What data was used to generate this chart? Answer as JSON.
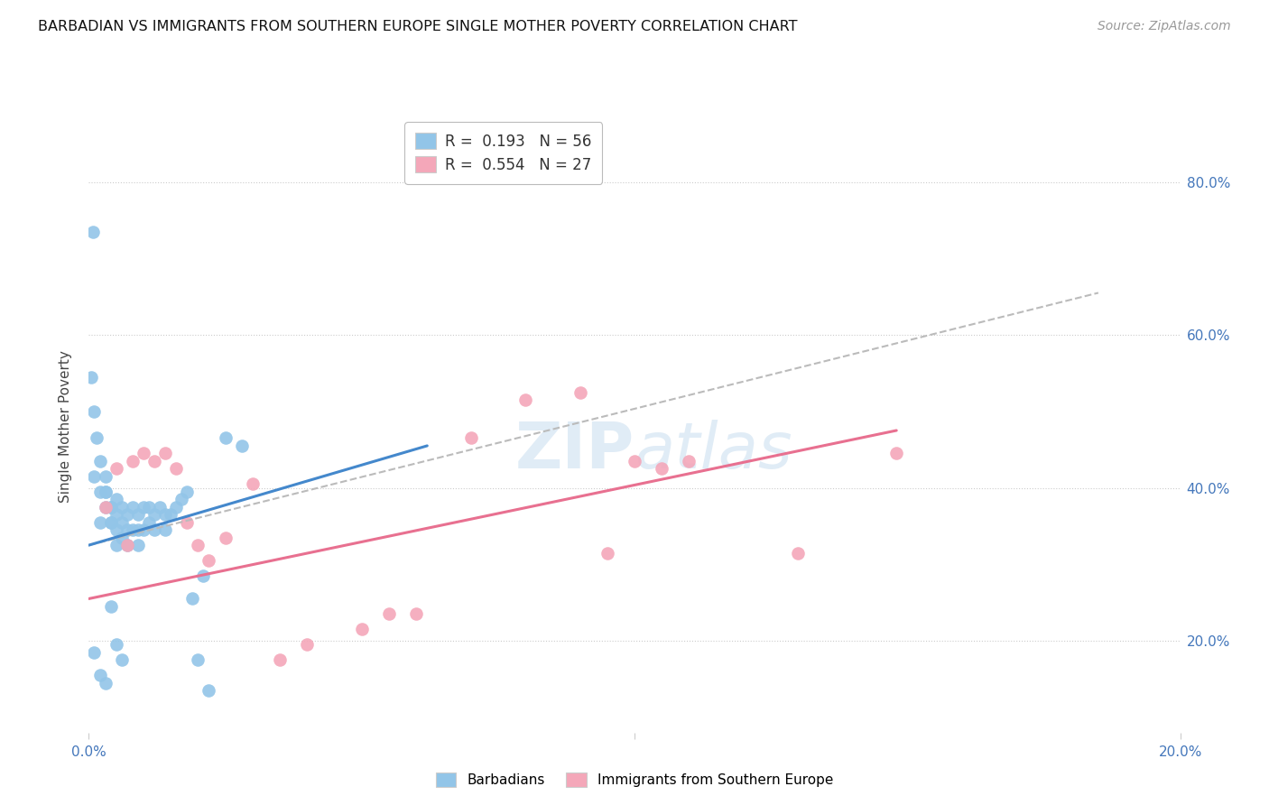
{
  "title": "BARBADIAN VS IMMIGRANTS FROM SOUTHERN EUROPE SINGLE MOTHER POVERTY CORRELATION CHART",
  "source": "Source: ZipAtlas.com",
  "ylabel": "Single Mother Poverty",
  "y_tick_labels": [
    "20.0%",
    "40.0%",
    "60.0%",
    "80.0%"
  ],
  "y_tick_values": [
    0.2,
    0.4,
    0.6,
    0.8
  ],
  "x_range": [
    0.0,
    0.2
  ],
  "y_range": [
    0.08,
    0.88
  ],
  "legend_r1": "R =  0.193",
  "legend_n1": "N = 56",
  "legend_r2": "R =  0.554",
  "legend_n2": "N = 27",
  "blue_color": "#92C5E8",
  "pink_color": "#F4A7B9",
  "blue_line_color": "#4488CC",
  "pink_line_color": "#E87090",
  "dashed_line_color": "#BBBBBB",
  "watermark_color": "#C8DDEF",
  "background_color": "#FFFFFF",
  "blue_scatter_x": [
    0.0008,
    0.0005,
    0.001,
    0.0015,
    0.002,
    0.001,
    0.002,
    0.003,
    0.002,
    0.003,
    0.003,
    0.004,
    0.004,
    0.003,
    0.004,
    0.004,
    0.005,
    0.005,
    0.005,
    0.005,
    0.006,
    0.006,
    0.006,
    0.007,
    0.007,
    0.007,
    0.008,
    0.008,
    0.009,
    0.009,
    0.009,
    0.01,
    0.01,
    0.011,
    0.011,
    0.012,
    0.012,
    0.013,
    0.014,
    0.014,
    0.015,
    0.016,
    0.017,
    0.018,
    0.019,
    0.02,
    0.021,
    0.022,
    0.025,
    0.028,
    0.001,
    0.002,
    0.003,
    0.004,
    0.005,
    0.006
  ],
  "blue_scatter_y": [
    0.735,
    0.545,
    0.5,
    0.465,
    0.435,
    0.415,
    0.395,
    0.375,
    0.355,
    0.415,
    0.395,
    0.375,
    0.355,
    0.395,
    0.375,
    0.355,
    0.385,
    0.365,
    0.345,
    0.325,
    0.375,
    0.355,
    0.335,
    0.365,
    0.345,
    0.325,
    0.375,
    0.345,
    0.365,
    0.345,
    0.325,
    0.375,
    0.345,
    0.375,
    0.355,
    0.365,
    0.345,
    0.375,
    0.365,
    0.345,
    0.365,
    0.375,
    0.385,
    0.395,
    0.255,
    0.175,
    0.285,
    0.135,
    0.465,
    0.455,
    0.185,
    0.155,
    0.145,
    0.245,
    0.195,
    0.175
  ],
  "pink_scatter_x": [
    0.003,
    0.005,
    0.007,
    0.008,
    0.01,
    0.012,
    0.014,
    0.016,
    0.018,
    0.02,
    0.022,
    0.025,
    0.03,
    0.035,
    0.04,
    0.05,
    0.055,
    0.06,
    0.07,
    0.08,
    0.09,
    0.095,
    0.1,
    0.105,
    0.11,
    0.13,
    0.148
  ],
  "pink_scatter_y": [
    0.375,
    0.425,
    0.325,
    0.435,
    0.445,
    0.435,
    0.445,
    0.425,
    0.355,
    0.325,
    0.305,
    0.335,
    0.405,
    0.175,
    0.195,
    0.215,
    0.235,
    0.235,
    0.465,
    0.515,
    0.525,
    0.315,
    0.435,
    0.425,
    0.435,
    0.315,
    0.445
  ],
  "blue_line_x": [
    0.0,
    0.062
  ],
  "blue_line_y": [
    0.325,
    0.455
  ],
  "pink_line_x": [
    0.0,
    0.148
  ],
  "pink_line_y": [
    0.255,
    0.475
  ],
  "dashed_line_x": [
    0.0,
    0.185
  ],
  "dashed_line_y": [
    0.325,
    0.655
  ]
}
